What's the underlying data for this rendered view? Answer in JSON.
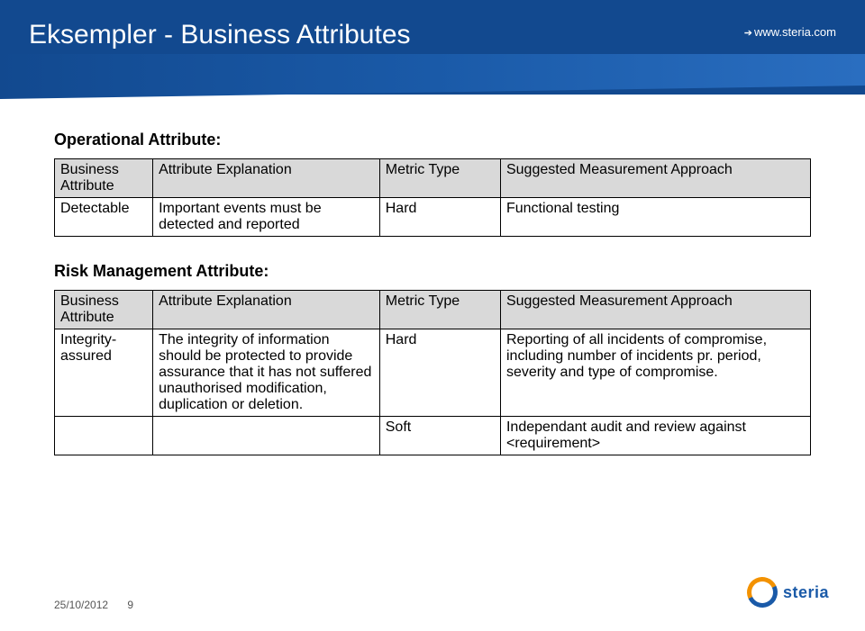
{
  "header": {
    "title": "Eksempler - Business Attributes",
    "url": "www.steria.com"
  },
  "section1": {
    "heading": "Operational Attribute:",
    "headers": {
      "c1": "Business Attribute",
      "c2": "Attribute Explanation",
      "c3": "Metric Type",
      "c4": "Suggested Measurement Approach"
    },
    "row": {
      "c1": "Detectable",
      "c2": "Important events must be detected and reported",
      "c3": "Hard",
      "c4": "Functional testing"
    }
  },
  "section2": {
    "heading": "Risk Management Attribute:",
    "headers": {
      "c1": "Business Attribute",
      "c2": "Attribute Explanation",
      "c3": "Metric Type",
      "c4": "Suggested Measurement Approach"
    },
    "row1": {
      "c1": "Integrity-assured",
      "c2": "The integrity of information should be protected to provide assurance that it has not suffered unauthorised modification, duplication or deletion.",
      "c3": "Hard",
      "c4": "Reporting of all incidents of compromise, including number of incidents pr. period, severity and type of compromise."
    },
    "row2": {
      "c1": "",
      "c2": "",
      "c3": "Soft",
      "c4": "Independant audit and review against <requirement>"
    }
  },
  "footer": {
    "date": "25/10/2012",
    "page": "9"
  },
  "logo": {
    "text": "steria"
  },
  "colors": {
    "header_bg": "#12498f",
    "table_header_bg": "#d9d9d9",
    "logo_orange": "#f39200",
    "logo_blue": "#1a5aa8"
  }
}
